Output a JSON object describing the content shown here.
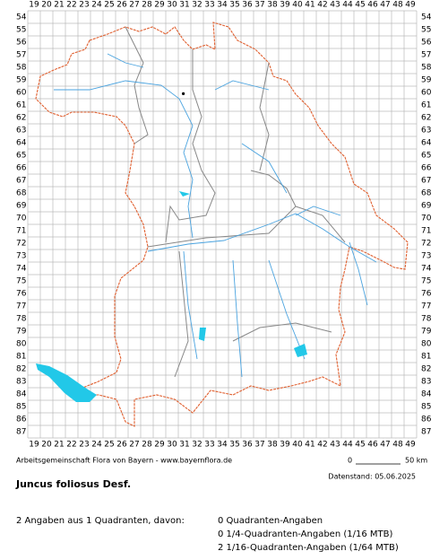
{
  "map": {
    "columns": [
      19,
      20,
      21,
      22,
      23,
      24,
      25,
      26,
      27,
      28,
      29,
      30,
      31,
      32,
      33,
      34,
      35,
      36,
      37,
      38,
      39,
      40,
      41,
      42,
      43,
      44,
      45,
      46,
      47,
      48,
      49
    ],
    "rows": [
      54,
      55,
      56,
      57,
      58,
      59,
      60,
      61,
      62,
      63,
      64,
      65,
      66,
      67,
      68,
      69,
      70,
      71,
      72,
      73,
      74,
      75,
      76,
      77,
      78,
      79,
      80,
      81,
      82,
      83,
      84,
      85,
      86,
      87
    ],
    "records": [
      {
        "x": 30.9,
        "y": 60.1
      }
    ]
  },
  "footer": {
    "credit": "Arbeitsgemeinschaft Flora von Bayern - www.bayernflora.de",
    "scale_start": "0",
    "scale_end": "50 km",
    "date": "Datenstand: 05.06.2025"
  },
  "species": "Juncus foliosus Desf.",
  "summary": {
    "total": "2 Angaben aus 1 Quadranten, davon:",
    "lines": [
      "0 Quadranten-Angaben",
      "0 1/4-Quadranten-Angaben (1/16 MTB)",
      "2 1/16-Quadranten-Angaben (1/64 MTB)"
    ]
  }
}
